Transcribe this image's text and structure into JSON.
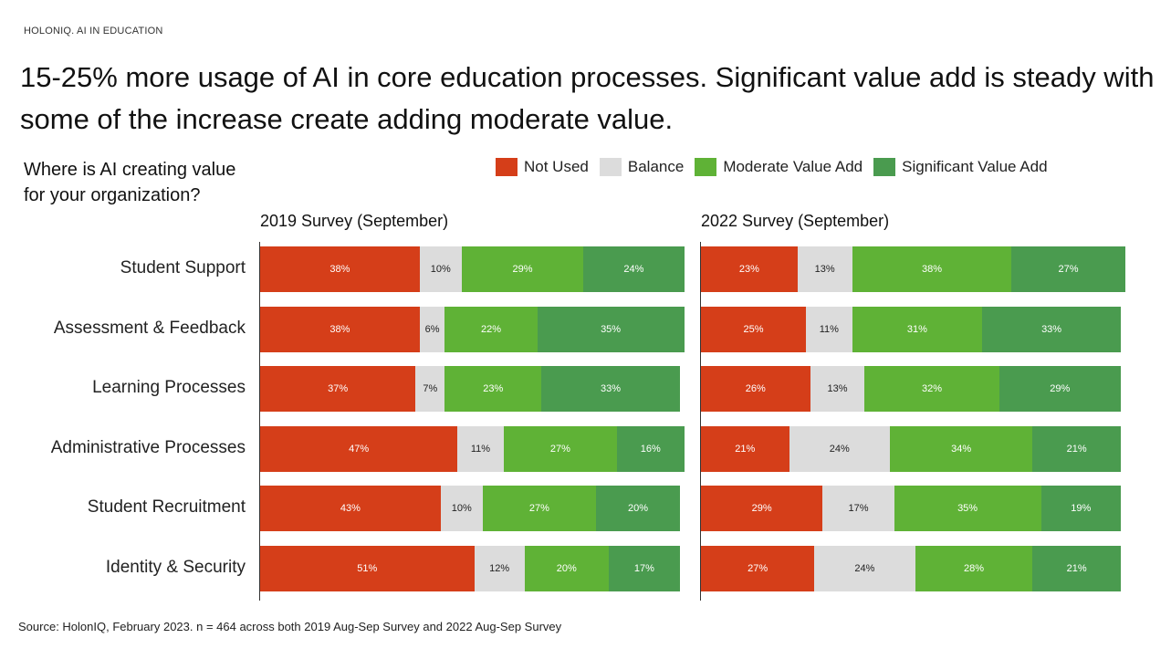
{
  "header": {
    "kicker": "HOLONIQ. AI IN EDUCATION",
    "title": "15-25% more usage of AI in core education processes. Significant value add is steady with some of the increase create adding moderate value."
  },
  "question": {
    "line1": "Where is AI creating value",
    "line2": "for your organization?"
  },
  "footer": {
    "source": "Source: HolonIQ, February 2023. n = 464 across both 2019 Aug-Sep Survey and 2022 Aug-Sep Survey"
  },
  "chart_data": {
    "type": "bar",
    "stacked": true,
    "orientation": "horizontal",
    "value_format": "percent",
    "categories": [
      "Student Support",
      "Assessment & Feedback",
      "Learning Processes",
      "Administrative Processes",
      "Student Recruitment",
      "Identity & Security"
    ],
    "legend": [
      {
        "name": "Not Used",
        "color": "#d53e19"
      },
      {
        "name": "Balance",
        "color": "#dcdcdc"
      },
      {
        "name": "Moderate Value Add",
        "color": "#5fb236"
      },
      {
        "name": "Significant Value Add",
        "color": "#4a9b4f"
      }
    ],
    "legend_position": "top-right",
    "panels": [
      {
        "title": "2019 Survey (September)",
        "series": [
          {
            "name": "Not Used",
            "values": [
              38,
              38,
              37,
              47,
              43,
              51
            ]
          },
          {
            "name": "Balance",
            "values": [
              10,
              6,
              7,
              11,
              10,
              12
            ]
          },
          {
            "name": "Moderate Value Add",
            "values": [
              29,
              22,
              23,
              27,
              27,
              20
            ]
          },
          {
            "name": "Significant Value Add",
            "values": [
              24,
              35,
              33,
              16,
              20,
              17
            ]
          }
        ]
      },
      {
        "title": "2022 Survey (September)",
        "series": [
          {
            "name": "Not Used",
            "values": [
              23,
              25,
              26,
              21,
              29,
              27
            ]
          },
          {
            "name": "Balance",
            "values": [
              13,
              11,
              13,
              24,
              17,
              24
            ]
          },
          {
            "name": "Moderate Value Add",
            "values": [
              38,
              31,
              32,
              34,
              35,
              28
            ]
          },
          {
            "name": "Significant Value Add",
            "values": [
              27,
              33,
              29,
              21,
              19,
              21
            ]
          }
        ]
      }
    ]
  }
}
